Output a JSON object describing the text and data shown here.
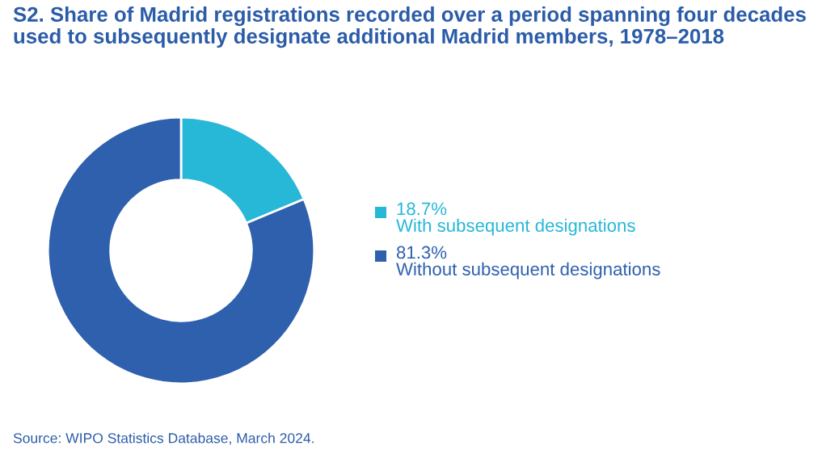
{
  "chart_data": {
    "type": "donut",
    "title": "S2. Share of Madrid registrations recorded over a period spanning four decades used to subsequently designate additional Madrid members, 1978–2018",
    "categories": [
      "With subsequent designations",
      "Without subsequent designations"
    ],
    "values": [
      18.7,
      81.3
    ],
    "colors": [
      "#27b7d7",
      "#2e60ad"
    ],
    "value_labels": [
      "18.7%",
      "81.3%"
    ],
    "legend": "right",
    "annotations": [
      "Source: WIPO Statistics Database, March 2024."
    ]
  }
}
